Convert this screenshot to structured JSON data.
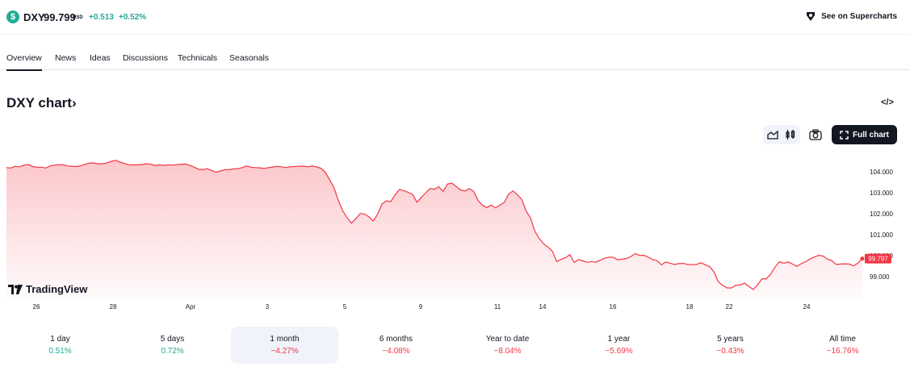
{
  "header": {
    "symbol": "DXY",
    "price": "99.799",
    "currency": "USD",
    "change": "+0.513",
    "change_pct": "+0.52%",
    "supercharts_label": "See on Supercharts"
  },
  "tabs": [
    {
      "label": "Overview",
      "active": true
    },
    {
      "label": "News"
    },
    {
      "label": "Ideas"
    },
    {
      "label": "Discussions"
    },
    {
      "label": "Technicals"
    },
    {
      "label": "Seasonals"
    }
  ],
  "section": {
    "title": "DXY chart›",
    "embed_icon": "code-icon"
  },
  "toolbar": {
    "full_chart_label": "Full chart"
  },
  "logo": {
    "text": "TradingView"
  },
  "colors": {
    "line": "#f23645",
    "up": "#22ab94",
    "down": "#f23645"
  },
  "chart_data": {
    "type": "area",
    "x_tick_labels": [
      "26",
      "28",
      "Apr",
      "3",
      "5",
      "9",
      "11",
      "14",
      "16",
      "18",
      "22",
      "24"
    ],
    "y_tick_labels": [
      "104.000",
      "103.000",
      "102.000",
      "101.000",
      "100.000",
      "99.000"
    ],
    "ylim": [
      98.3,
      104.55
    ],
    "last_value_label": "99.797",
    "values": [
      104.2,
      104.18,
      104.26,
      104.24,
      104.32,
      104.35,
      104.25,
      104.22,
      104.22,
      104.18,
      104.28,
      104.32,
      104.34,
      104.33,
      104.28,
      104.26,
      104.25,
      104.28,
      104.36,
      104.42,
      104.42,
      104.38,
      104.38,
      104.42,
      104.5,
      104.55,
      104.46,
      104.4,
      104.34,
      104.33,
      104.33,
      104.35,
      104.38,
      104.36,
      104.3,
      104.33,
      104.3,
      104.33,
      104.32,
      104.34,
      104.36,
      104.37,
      104.31,
      104.22,
      104.12,
      104.1,
      104.15,
      104.06,
      103.98,
      104.04,
      104.1,
      104.1,
      104.14,
      104.15,
      104.2,
      104.28,
      104.22,
      104.2,
      104.19,
      104.16,
      104.2,
      104.23,
      104.26,
      104.24,
      104.2,
      104.24,
      104.25,
      104.26,
      104.27,
      104.24,
      104.28,
      104.23,
      104.17,
      103.99,
      103.62,
      103.25,
      102.64,
      102.14,
      101.82,
      101.55,
      101.76,
      102.01,
      101.99,
      101.85,
      101.65,
      101.98,
      102.47,
      102.61,
      102.58,
      102.9,
      103.16,
      103.1,
      103.02,
      102.92,
      102.55,
      102.78,
      103.0,
      103.2,
      103.17,
      103.29,
      103.06,
      103.42,
      103.46,
      103.3,
      103.14,
      103.08,
      103.2,
      103.06,
      102.64,
      102.4,
      102.3,
      102.41,
      102.28,
      102.41,
      102.54,
      102.94,
      103.09,
      102.91,
      102.68,
      102.13,
      101.8,
      101.16,
      100.82,
      100.57,
      100.41,
      100.22,
      99.72,
      99.82,
      99.9,
      100.05,
      99.68,
      99.81,
      99.75,
      99.68,
      99.72,
      99.69,
      99.78,
      99.88,
      99.93,
      99.92,
      99.8,
      99.83,
      99.87,
      99.96,
      100.1,
      100.01,
      100.02,
      99.92,
      99.81,
      99.76,
      99.56,
      99.7,
      99.64,
      99.58,
      99.62,
      99.63,
      99.58,
      99.57,
      99.58,
      99.66,
      99.57,
      99.48,
      99.23,
      98.76,
      98.59,
      98.46,
      98.46,
      98.59,
      98.6,
      98.69,
      98.54,
      98.39,
      98.6,
      98.9,
      98.89,
      99.12,
      99.45,
      99.71,
      99.64,
      99.7,
      99.6,
      99.49,
      99.62,
      99.71,
      99.84,
      99.93,
      100.02,
      99.98,
      99.84,
      99.77,
      99.58,
      99.6,
      99.61,
      99.6,
      99.51,
      99.65,
      99.86
    ]
  },
  "periods": [
    {
      "label": "1 day",
      "value": "0.51%",
      "dir": "pos"
    },
    {
      "label": "5 days",
      "value": "0.72%",
      "dir": "pos"
    },
    {
      "label": "1 month",
      "value": "−4.27%",
      "dir": "neg",
      "selected": true
    },
    {
      "label": "6 months",
      "value": "−4.08%",
      "dir": "neg"
    },
    {
      "label": "Year to date",
      "value": "−8.04%",
      "dir": "neg"
    },
    {
      "label": "1 year",
      "value": "−5.69%",
      "dir": "neg"
    },
    {
      "label": "5 years",
      "value": "−0.43%",
      "dir": "neg"
    },
    {
      "label": "All time",
      "value": "−16.76%",
      "dir": "neg"
    }
  ]
}
